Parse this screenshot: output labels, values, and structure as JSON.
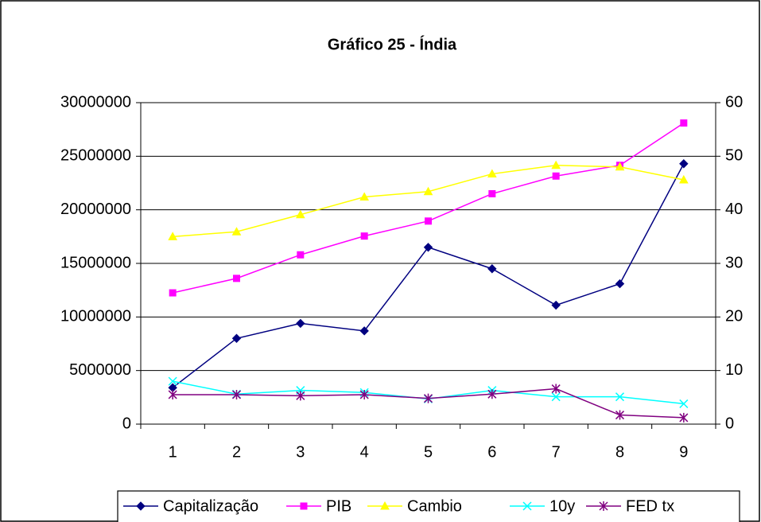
{
  "chart_data": {
    "type": "line",
    "title": "Gráfico 25 - Índia",
    "categories": [
      "1",
      "2",
      "3",
      "4",
      "5",
      "6",
      "7",
      "8",
      "9"
    ],
    "series": [
      {
        "name": "Capitalização",
        "color": "#000080",
        "marker": "diamond",
        "values": [
          3400000,
          8000000,
          9400000,
          8700000,
          16500000,
          14500000,
          11100000,
          13100000,
          24300000
        ]
      },
      {
        "name": "PIB",
        "color": "#ff00ff",
        "marker": "square",
        "axis": "y2",
        "values": [
          24.5,
          27.2,
          31.6,
          35.1,
          37.9,
          43,
          46.3,
          48.3,
          56.2
        ]
      },
      {
        "name": "Cambio",
        "color": "#ffff00",
        "marker": "triangle",
        "axis": "y2",
        "values": [
          35,
          35.9,
          39.1,
          42.4,
          43.4,
          46.7,
          48.3,
          48,
          45.6
        ]
      },
      {
        "name": "10y",
        "color": "#00ffff",
        "marker": "x",
        "axis": "y2",
        "values": [
          8,
          5.6,
          6.3,
          5.9,
          4.7,
          6.3,
          5.1,
          5.1,
          3.8
        ]
      },
      {
        "name": "FED tx",
        "color": "#800080",
        "marker": "star",
        "axis": "y2",
        "values": [
          5.5,
          5.5,
          5.3,
          5.5,
          4.8,
          5.6,
          6.6,
          1.7,
          1.2
        ]
      }
    ],
    "ylim": [
      0,
      30000000
    ],
    "yticks": [
      0,
      5000000,
      10000000,
      15000000,
      20000000,
      25000000,
      30000000
    ],
    "y2lim": [
      0,
      60
    ],
    "y2ticks": [
      0,
      10,
      20,
      30,
      40,
      50,
      60
    ],
    "grid": true,
    "legend": "bottom"
  }
}
